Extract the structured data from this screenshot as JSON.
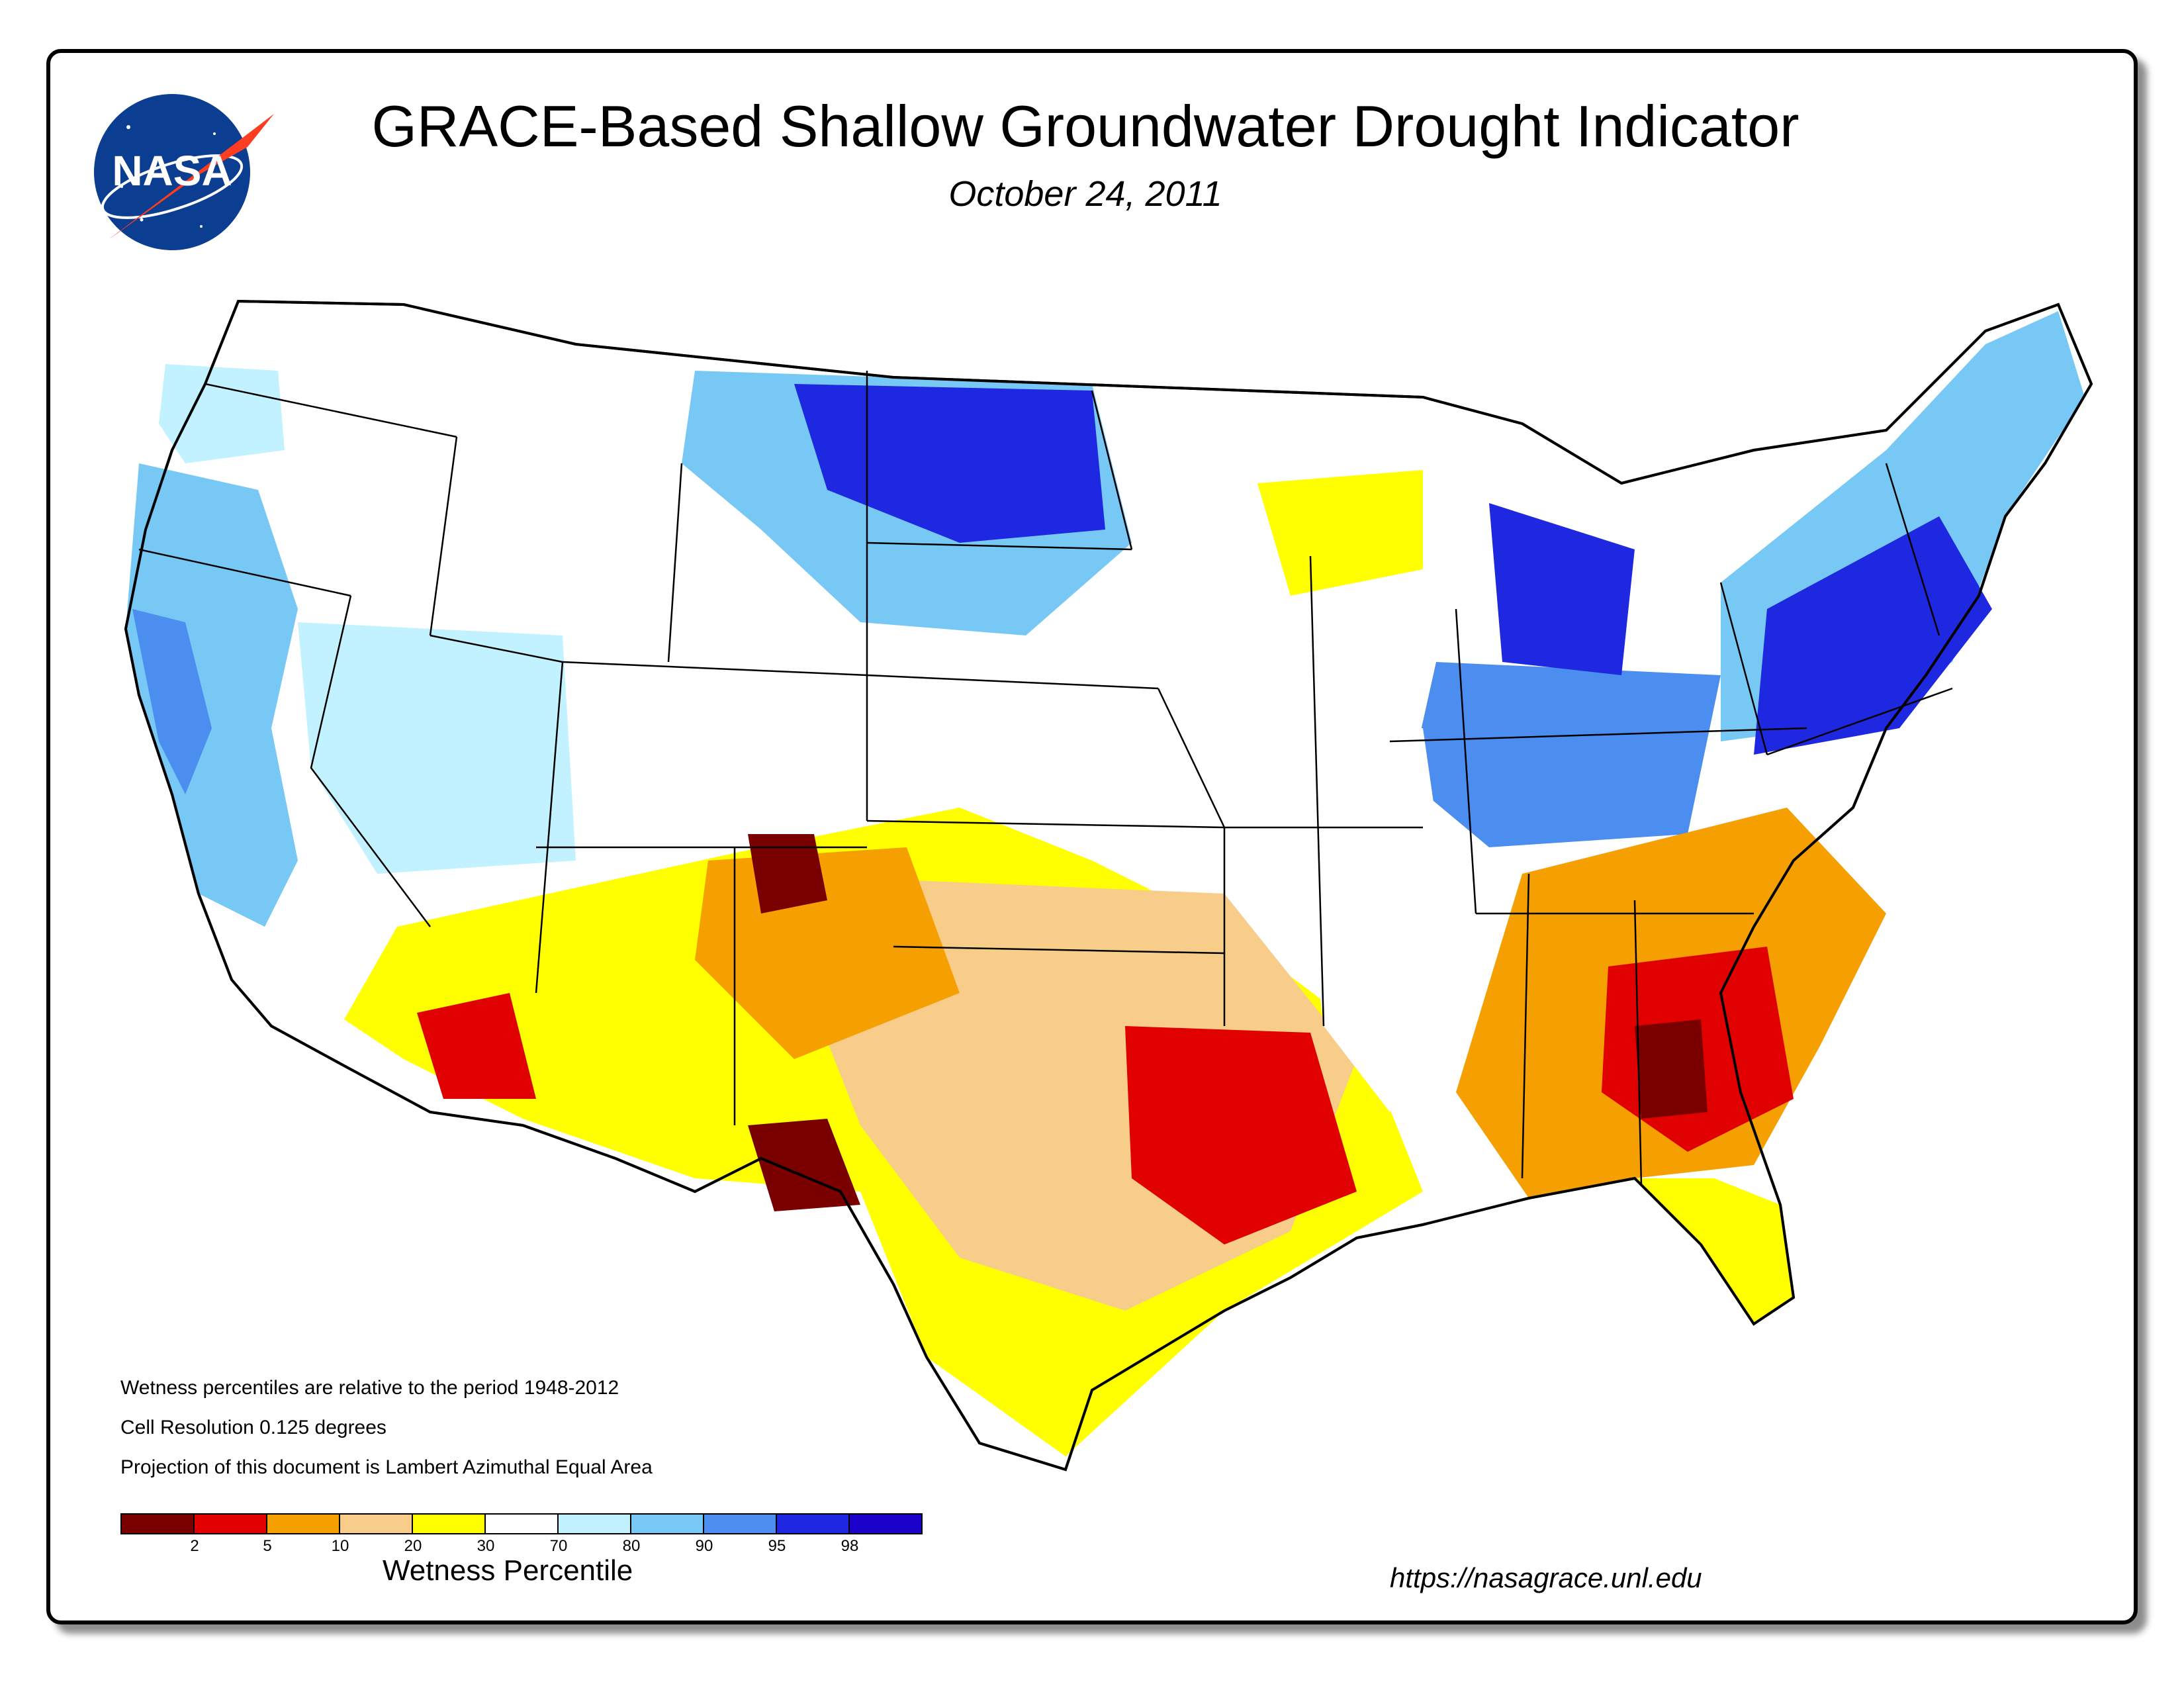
{
  "header": {
    "title": "GRACE-Based Shallow Groundwater Drought Indicator",
    "date": "October 24, 2011",
    "logo_text": "NASA"
  },
  "notes": [
    "Wetness percentiles are relative to the period 1948-2012",
    "Cell Resolution 0.125 degrees",
    "Projection of this document is Lambert Azimuthal Equal Area"
  ],
  "legend": {
    "title": "Wetness Percentile",
    "colors": [
      "#7a0000",
      "#e00000",
      "#f5a000",
      "#f8cd8a",
      "#ffff00",
      "#ffffff",
      "#c2f2ff",
      "#78c8f5",
      "#4b8ef0",
      "#1e28e0",
      "#1a00c8"
    ],
    "ticks": [
      "2",
      "5",
      "10",
      "20",
      "30",
      "70",
      "80",
      "90",
      "95",
      "98"
    ]
  },
  "map": {
    "regions": [
      {
        "name": "Pacific Northwest",
        "level": "wet",
        "color": "#78c8f5"
      },
      {
        "name": "California",
        "level": "wet",
        "color": "#4b8ef0"
      },
      {
        "name": "Northern Plains",
        "level": "very-wet",
        "color": "#1e28e0"
      },
      {
        "name": "Northeast",
        "level": "very-wet",
        "color": "#1e28e0"
      },
      {
        "name": "Ohio Valley",
        "level": "wet",
        "color": "#4b8ef0"
      },
      {
        "name": "Southwest",
        "level": "dry",
        "color": "#f5a000"
      },
      {
        "name": "Texas",
        "level": "very-dry",
        "color": "#e00000"
      },
      {
        "name": "Southeast",
        "level": "very-dry",
        "color": "#e00000"
      },
      {
        "name": "Central Plains",
        "level": "dry",
        "color": "#f8cd8a"
      }
    ]
  },
  "footer": {
    "url": "https://nasagrace.unl.edu"
  }
}
